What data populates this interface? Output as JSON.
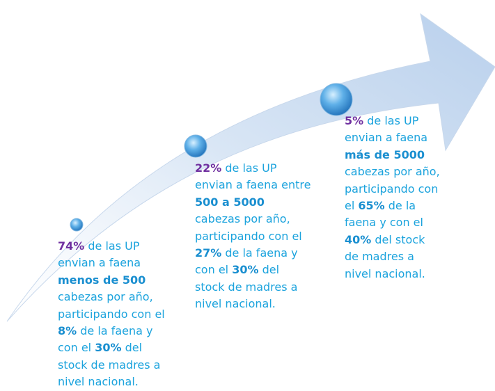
{
  "steps": [
    {
      "segments": [
        "74%",
        " de las UP envian a faena ",
        "menos de 500",
        " cabezas por año, participando con el ",
        "8%",
        " de la faena y con el ",
        "30%",
        " del stock de madres a nivel nacional."
      ]
    },
    {
      "segments": [
        "22%",
        " de las UP envian a faena entre ",
        "500 a 5000",
        " cabezas por año, participando con el ",
        "27%",
        " de la faena y con el ",
        "30%",
        " del stock de madres a nivel nacional."
      ]
    },
    {
      "segments": [
        "5%",
        " de las UP envian a faena ",
        "más de 5000",
        " cabezas por año, participando con el ",
        "65%",
        " de la faena y con el ",
        "40%",
        " del stock de madres a nivel nacional."
      ]
    }
  ]
}
